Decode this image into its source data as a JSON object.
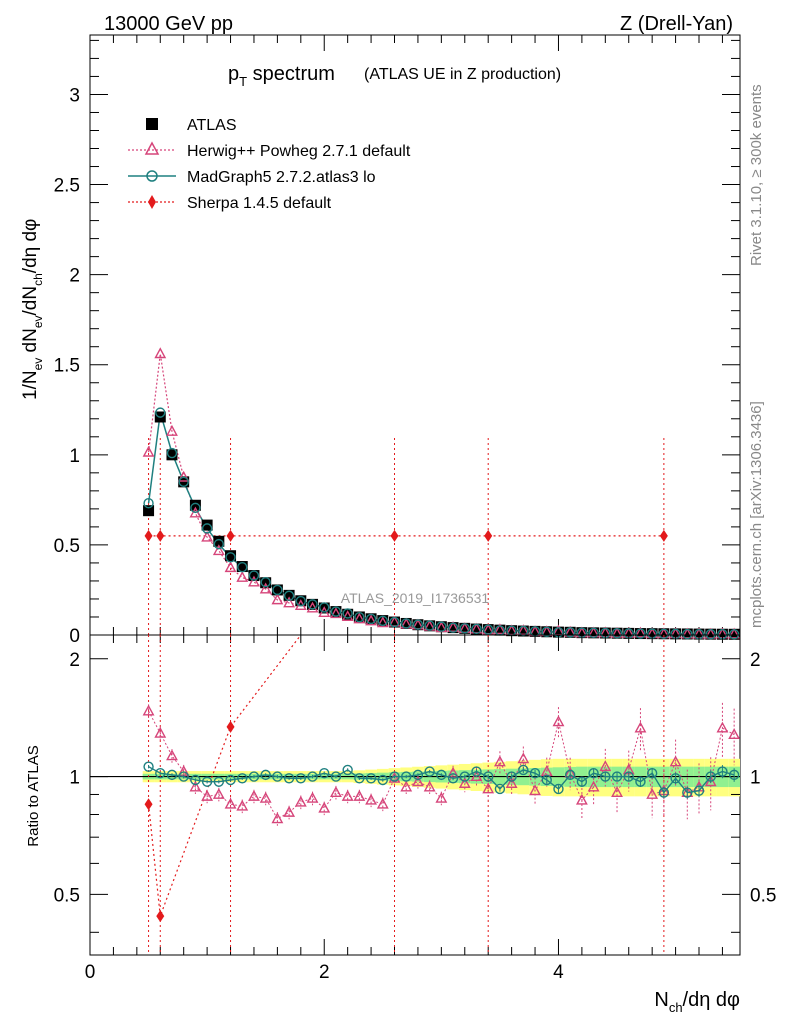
{
  "header": {
    "left": "13000 GeV pp",
    "right": "Z (Drell-Yan)"
  },
  "side": {
    "rivet": "Rivet 3.1.10, ≥ 300k events",
    "mcplots": "mcplots.cern.ch [arXiv:1306.3436]"
  },
  "watermark": "ATLAS_2019_I1736531",
  "chart_data": {
    "type": "scatter",
    "title_main": "p",
    "title_sub": "T",
    "title_rest": " spectrum",
    "title_note": "(ATLAS UE in Z production)",
    "xlabel": "N",
    "xlabel_sub": "ch",
    "xlabel_rest": "/dη dφ",
    "ylabel": "1/N_ev dN_ev/dN_ch/dη dφ",
    "ratio_ylabel": "Ratio to ATLAS",
    "xlim": [
      0,
      5.55
    ],
    "ylim": [
      0,
      3.33
    ],
    "ratio_ylim": [
      0.35,
      2.3
    ],
    "x_ticks": [
      "0",
      "2",
      "4"
    ],
    "y_ticks": [
      "0",
      "0.5",
      "1",
      "1.5",
      "2",
      "2.5",
      "3"
    ],
    "ratio_ticks": [
      "0.5",
      "1",
      "2"
    ],
    "x": [
      0.5,
      0.6,
      0.7,
      0.8,
      0.9,
      1.0,
      1.1,
      1.2,
      1.3,
      1.4,
      1.5,
      1.6,
      1.7,
      1.8,
      1.9,
      2.0,
      2.1,
      2.2,
      2.3,
      2.4,
      2.5,
      2.6,
      2.7,
      2.8,
      2.9,
      3.0,
      3.1,
      3.2,
      3.3,
      3.4,
      3.5,
      3.6,
      3.7,
      3.8,
      3.9,
      4.0,
      4.1,
      4.2,
      4.3,
      4.4,
      4.5,
      4.6,
      4.7,
      4.8,
      4.9,
      5.0,
      5.1,
      5.2,
      5.3,
      5.4,
      5.5
    ],
    "series": [
      {
        "name": "ATLAS",
        "color": "#000000",
        "values": [
          0.69,
          1.21,
          1.0,
          0.85,
          0.72,
          0.61,
          0.52,
          0.44,
          0.38,
          0.33,
          0.29,
          0.25,
          0.22,
          0.19,
          0.17,
          0.15,
          0.13,
          0.115,
          0.1,
          0.09,
          0.08,
          0.072,
          0.064,
          0.057,
          0.051,
          0.046,
          0.041,
          0.037,
          0.033,
          0.03,
          0.027,
          0.024,
          0.022,
          0.02,
          0.018,
          0.016,
          0.015,
          0.013,
          0.012,
          0.011,
          0.01,
          0.009,
          0.008,
          0.0075,
          0.007,
          0.0063,
          0.0057,
          0.0052,
          0.0047,
          0.0043,
          0.004
        ]
      },
      {
        "name": "Herwig++ Powheg 2.7.1 default",
        "color": "#d6457a",
        "ratio": [
          1.47,
          1.29,
          1.13,
          1.03,
          0.94,
          0.89,
          0.9,
          0.85,
          0.84,
          0.89,
          0.88,
          0.78,
          0.81,
          0.86,
          0.88,
          0.83,
          0.91,
          0.89,
          0.89,
          0.87,
          0.85,
          0.99,
          0.94,
          0.97,
          0.94,
          0.88,
          1.02,
          0.96,
          1.0,
          0.93,
          1.09,
          0.96,
          1.11,
          0.92,
          1.03,
          1.38,
          1.02,
          0.87,
          0.94,
          1.06,
          0.91,
          1.04,
          1.33,
          0.9,
          0.92,
          1.09,
          0.91,
          0.94,
          0.97,
          1.33,
          1.28
        ]
      },
      {
        "name": "MadGraph5 2.7.2.atlas3 lo",
        "color": "#1f8080",
        "ratio": [
          1.06,
          1.02,
          1.01,
          1.0,
          0.98,
          0.97,
          0.97,
          0.98,
          0.99,
          1.0,
          1.01,
          1.0,
          0.99,
          0.99,
          1.0,
          1.02,
          1.0,
          1.04,
          0.99,
          0.99,
          0.98,
          1.0,
          1.0,
          1.01,
          1.03,
          1.01,
          0.99,
          1.0,
          1.03,
          1.0,
          0.93,
          1.0,
          1.04,
          1.02,
          0.98,
          0.93,
          1.01,
          0.97,
          1.02,
          1.0,
          1.0,
          1.0,
          0.97,
          1.02,
          0.91,
          0.99,
          0.91,
          0.92,
          1.0,
          1.03,
          1.01
        ]
      },
      {
        "name": "Sherpa 1.4.5 default",
        "color": "#e31a1c",
        "x": [
          0.5,
          0.6,
          1.2,
          2.6,
          3.4,
          4.9
        ],
        "values": [
          0.55,
          0.55,
          0.55,
          0.55,
          0.55,
          0.55
        ],
        "ratio": [
          0.85,
          0.44,
          1.34,
          null,
          null,
          null
        ]
      }
    ]
  }
}
